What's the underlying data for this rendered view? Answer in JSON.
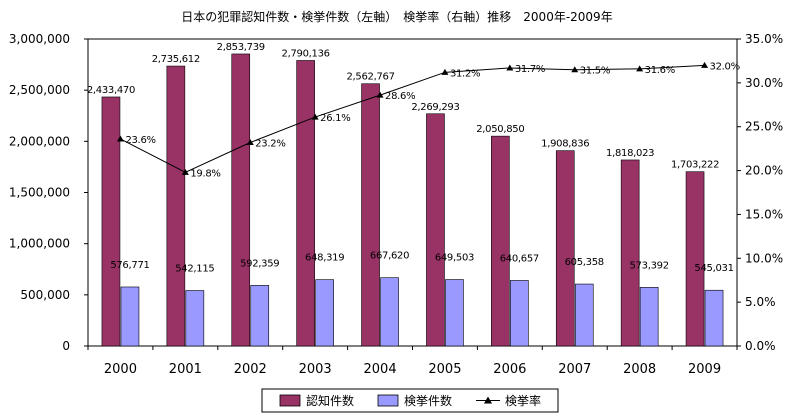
{
  "chart_data": {
    "type": "bar",
    "title": "日本の犯罪認知件数・検挙件数（左軸）　検挙率（右軸）推移　2000年-2009年",
    "categories": [
      "2000",
      "2001",
      "2002",
      "2003",
      "2004",
      "2005",
      "2006",
      "2007",
      "2008",
      "2009"
    ],
    "series": [
      {
        "name": "認知件数",
        "axis": "left",
        "color": "#993366",
        "values": [
          2433470,
          2735612,
          2853739,
          2790136,
          2562767,
          2269293,
          2050850,
          1908836,
          1818023,
          1703222
        ],
        "labels": [
          "2,433,470",
          "2,735,612",
          "2,853,739",
          "2,790,136",
          "2,562,767",
          "2,269,293",
          "2,050,850",
          "1,908,836",
          "1,818,023",
          "1,703,222"
        ]
      },
      {
        "name": "検挙件数",
        "axis": "left",
        "color": "#9999ff",
        "values": [
          576771,
          542115,
          592359,
          648319,
          667620,
          649503,
          640657,
          605358,
          573392,
          545031
        ],
        "labels": [
          "576,771",
          "542,115",
          "592,359",
          "648,319",
          "667,620",
          "649,503",
          "640,657",
          "605,358",
          "573,392",
          "545,031"
        ]
      },
      {
        "name": "検挙率",
        "type": "line",
        "axis": "right",
        "color": "#000000",
        "marker": "triangle",
        "values": [
          23.6,
          19.8,
          23.2,
          26.1,
          28.6,
          31.2,
          31.7,
          31.5,
          31.6,
          32.0
        ],
        "labels": [
          "23.6%",
          "19.8%",
          "23.2%",
          "26.1%",
          "28.6%",
          "31.2%",
          "31.7%",
          "31.5%",
          "31.6%",
          "32.0%"
        ]
      }
    ],
    "y_left": {
      "ylim": [
        0,
        3000000
      ],
      "ticks": [
        0,
        500000,
        1000000,
        1500000,
        2000000,
        2500000,
        3000000
      ],
      "tick_labels": [
        "0",
        "500,000",
        "1,000,000",
        "1,500,000",
        "2,000,000",
        "2,500,000",
        "3,000,000"
      ]
    },
    "y_right": {
      "ylim": [
        0,
        35
      ],
      "ticks": [
        0,
        5,
        10,
        15,
        20,
        25,
        30,
        35
      ],
      "tick_labels": [
        "0.0%",
        "5.0%",
        "10.0%",
        "15.0%",
        "20.0%",
        "25.0%",
        "30.0%",
        "35.0%"
      ]
    },
    "grid": false,
    "legend_position": "bottom"
  }
}
